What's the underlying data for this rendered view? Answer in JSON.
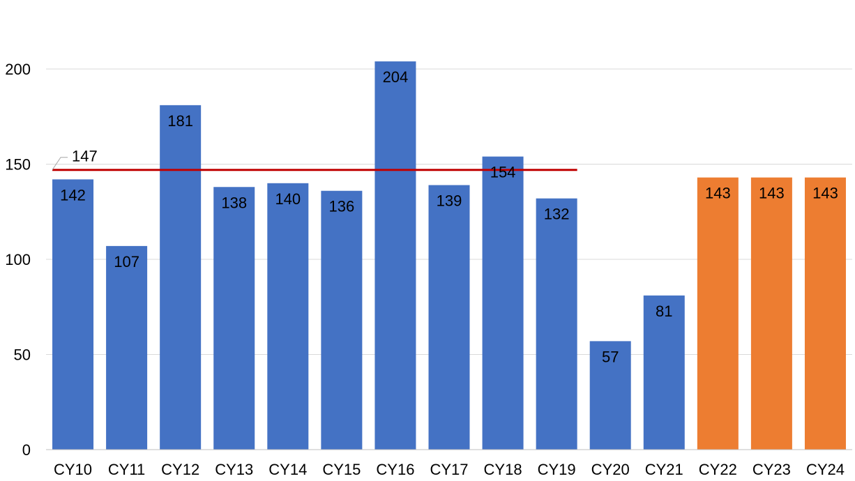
{
  "chart_data": {
    "type": "bar",
    "categories": [
      "CY10",
      "CY11",
      "CY12",
      "CY13",
      "CY14",
      "CY15",
      "CY16",
      "CY17",
      "CY18",
      "CY19",
      "CY20",
      "CY21",
      "CY22",
      "CY23",
      "CY24"
    ],
    "values": [
      142,
      107,
      181,
      138,
      140,
      136,
      204,
      139,
      154,
      132,
      57,
      81,
      143,
      143,
      143
    ],
    "data_labels": [
      "142",
      "107",
      "181",
      "138",
      "140",
      "136",
      "204",
      "139",
      "154",
      "132",
      "57",
      "81",
      "143",
      "143",
      "143"
    ],
    "bar_colors": [
      "#4472C4",
      "#4472C4",
      "#4472C4",
      "#4472C4",
      "#4472C4",
      "#4472C4",
      "#4472C4",
      "#4472C4",
      "#4472C4",
      "#4472C4",
      "#4472C4",
      "#4472C4",
      "#ED7D31",
      "#ED7D31",
      "#ED7D31"
    ],
    "reference_line": {
      "value": 147,
      "label": "147",
      "from_category": "CY10",
      "to_category": "CY19",
      "color": "#C00000"
    },
    "title": "",
    "xlabel": "",
    "ylabel": "",
    "ylim": [
      0,
      200
    ],
    "yticks": [
      0,
      50,
      100,
      150,
      200
    ],
    "grid": true,
    "legend": "none",
    "colors": {
      "actual": "#4472C4",
      "projected": "#ED7D31",
      "gridline": "#D9D9D9",
      "axis": "#BFBFBF"
    }
  }
}
